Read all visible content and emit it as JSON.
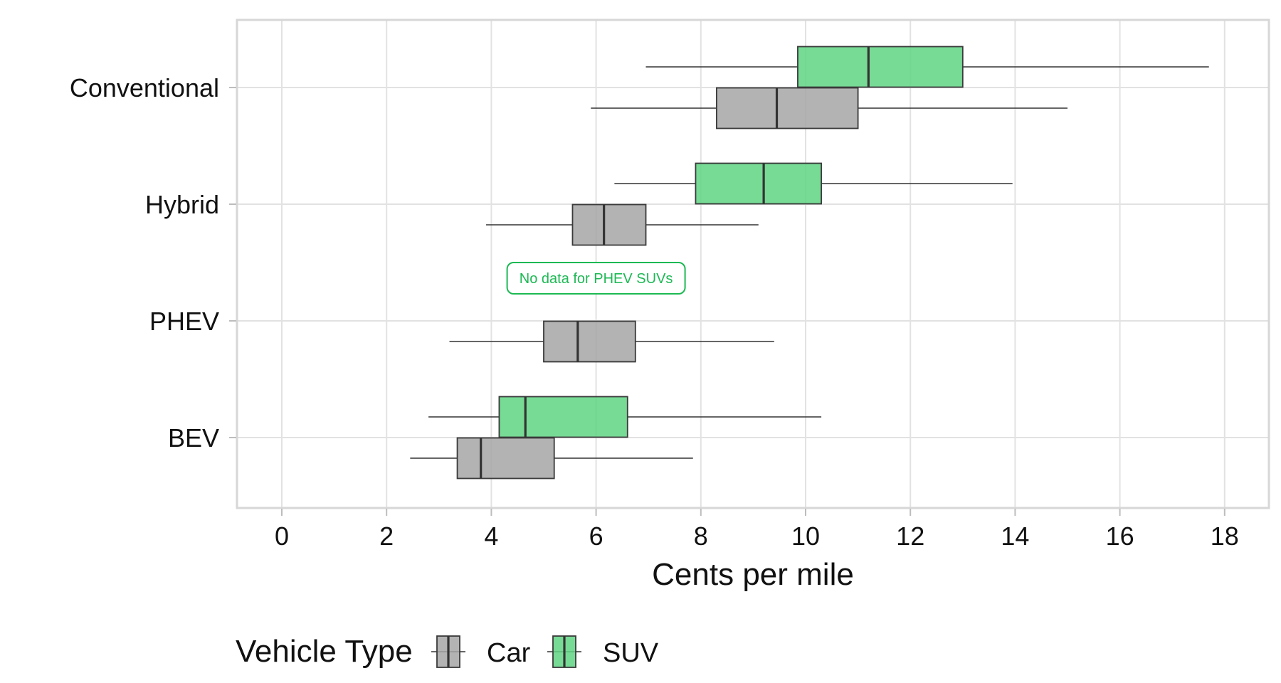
{
  "chart_data": {
    "type": "boxplot",
    "orientation": "horizontal",
    "categories": [
      "Conventional",
      "Hybrid",
      "PHEV",
      "BEV"
    ],
    "xlabel": "Cents per mile",
    "ylabel": "",
    "xlim": [
      0,
      18
    ],
    "x_ticks": [
      "0",
      "2",
      "4",
      "6",
      "8",
      "10",
      "12",
      "14",
      "16",
      "18"
    ],
    "grid": true,
    "legend": {
      "title": "Vehicle Type",
      "position": "bottom"
    },
    "series": [
      {
        "name": "Car",
        "color": "#a6a6a6",
        "boxes": [
          {
            "category": "Conventional",
            "min": 5.9,
            "q1": 8.3,
            "median": 9.45,
            "q3": 11.0,
            "max": 15.0
          },
          {
            "category": "Hybrid",
            "min": 3.9,
            "q1": 5.55,
            "median": 6.15,
            "q3": 6.95,
            "max": 9.1
          },
          {
            "category": "PHEV",
            "min": 3.2,
            "q1": 5.0,
            "median": 5.65,
            "q3": 6.75,
            "max": 9.4
          },
          {
            "category": "BEV",
            "min": 2.45,
            "q1": 3.35,
            "median": 3.8,
            "q3": 5.2,
            "max": 7.85
          }
        ]
      },
      {
        "name": "SUV",
        "color": "#5fd483",
        "boxes": [
          {
            "category": "Conventional",
            "min": 6.95,
            "q1": 9.85,
            "median": 11.2,
            "q3": 13.0,
            "max": 17.7
          },
          {
            "category": "Hybrid",
            "min": 6.35,
            "q1": 7.9,
            "median": 9.2,
            "q3": 10.3,
            "max": 13.95
          },
          {
            "category": "BEV",
            "min": 2.8,
            "q1": 4.15,
            "median": 4.65,
            "q3": 6.6,
            "max": 10.3
          }
        ]
      }
    ],
    "annotations": [
      {
        "text": "No data for PHEV SUVs",
        "x": 6.0,
        "category": "PHEV",
        "color": "#1db954"
      }
    ]
  }
}
